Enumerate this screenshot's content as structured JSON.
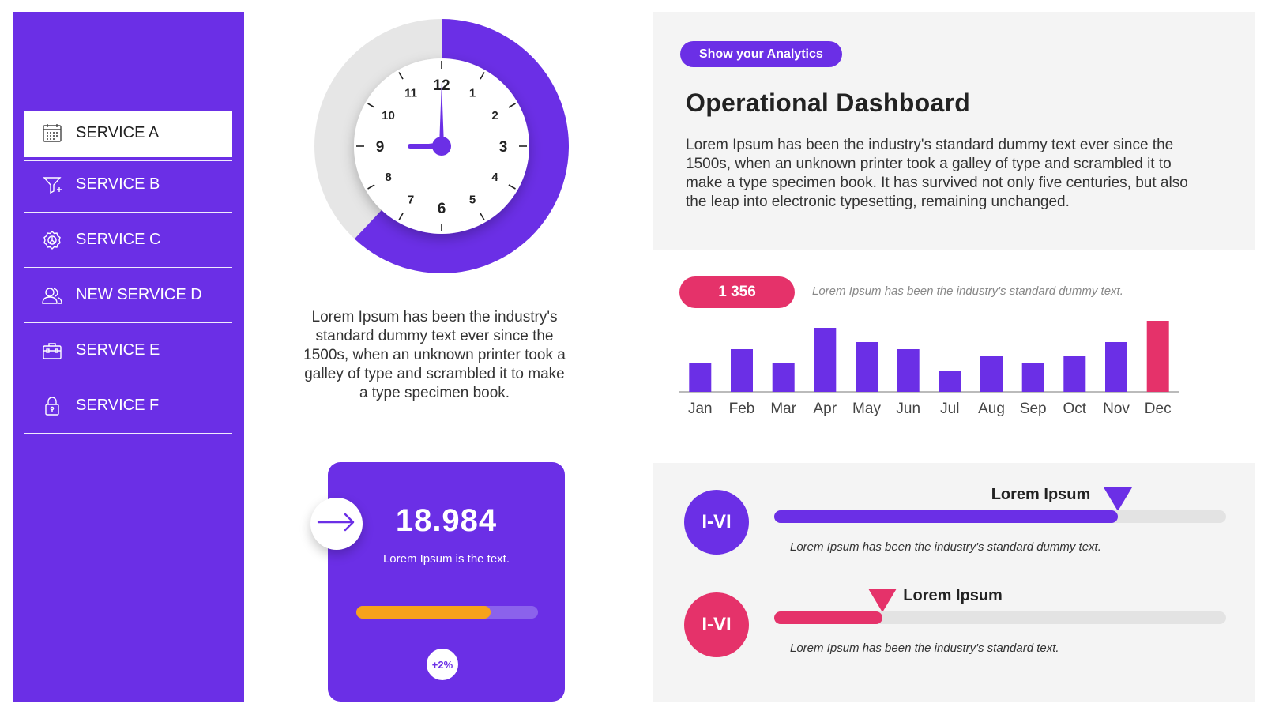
{
  "sidebar": {
    "items": [
      {
        "label": "SERVICE A",
        "icon": "calendar-icon",
        "active": true
      },
      {
        "label": "SERVICE B",
        "icon": "funnel-icon",
        "active": false
      },
      {
        "label": "SERVICE C",
        "icon": "gear-icon",
        "active": false
      },
      {
        "label": "NEW SERVICE D",
        "icon": "users-icon",
        "active": false
      },
      {
        "label": "SERVICE E",
        "icon": "toolbox-icon",
        "active": false
      },
      {
        "label": "SERVICE F",
        "icon": "lock-icon",
        "active": false
      }
    ]
  },
  "clock": {
    "numbers": [
      "12",
      "1",
      "2",
      "3",
      "4",
      "5",
      "6",
      "7",
      "8",
      "9",
      "10",
      "11"
    ],
    "time": "9:00",
    "ring_progress": 0.62,
    "caption": "Lorem Ipsum has been the industry's standard dummy text ever since the 1500s, when an unknown printer took a galley of type and scrambled it to make a type specimen book."
  },
  "stat_card": {
    "value": "18.984",
    "label": "Lorem Ipsum is the text.",
    "progress": 0.74,
    "badge": "+2%"
  },
  "header": {
    "pill": "Show your Analytics",
    "title": "Operational Dashboard",
    "body": "Lorem Ipsum has been the industry's standard dummy text ever since the 1500s, when an unknown printer took a galley of type and scrambled it to make a type specimen book. It has survived not only five centuries, but also the leap into electronic typesetting, remaining unchanged."
  },
  "summary": {
    "count": "1 356",
    "note": "Lorem Ipsum has been the industry's standard dummy text."
  },
  "chart_data": {
    "type": "bar",
    "categories": [
      "Jan",
      "Feb",
      "Mar",
      "Apr",
      "May",
      "Jun",
      "Jul",
      "Aug",
      "Sep",
      "Oct",
      "Nov",
      "Dec"
    ],
    "values": [
      4,
      6,
      4,
      9,
      7,
      6,
      3,
      5,
      4,
      5,
      7,
      10
    ],
    "highlight_index": 11,
    "colors": {
      "bar": "#6b2fe6",
      "highlight": "#e5326a"
    },
    "ylim": [
      0,
      10
    ],
    "grid": false
  },
  "progress_rows": [
    {
      "badge": "I-VI",
      "label": "Lorem Ipsum",
      "value": 0.76,
      "color": "#6b2fe6",
      "note": "Lorem Ipsum has been the industry's standard dummy text."
    },
    {
      "badge": "I-VI",
      "label": "Lorem Ipsum",
      "value": 0.24,
      "color": "#e5326a",
      "note": "Lorem Ipsum has been the industry's standard text."
    }
  ],
  "theme": {
    "primary": "#6b2fe6",
    "accent": "#e5326a",
    "orange": "#f7a21b",
    "panel": "#f4f4f4"
  }
}
